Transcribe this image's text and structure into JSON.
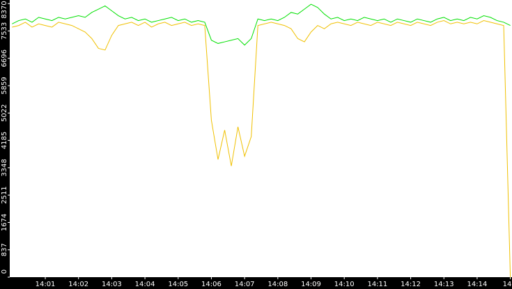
{
  "chart_data": {
    "type": "line",
    "x": [
      0,
      0.2,
      0.4,
      0.6,
      0.8,
      1,
      1.2,
      1.4,
      1.6,
      1.8,
      2,
      2.2,
      2.4,
      2.6,
      2.8,
      3,
      3.2,
      3.4,
      3.6,
      3.8,
      4,
      4.2,
      4.4,
      4.6,
      4.8,
      5,
      5.2,
      5.4,
      5.6,
      5.8,
      6,
      6.2,
      6.4,
      6.6,
      6.8,
      7,
      7.2,
      7.4,
      7.6,
      7.8,
      8,
      8.2,
      8.4,
      8.6,
      8.8,
      9,
      9.2,
      9.4,
      9.6,
      9.8,
      10,
      10.2,
      10.4,
      10.6,
      10.8,
      11,
      11.2,
      11.4,
      11.6,
      11.8,
      12,
      12.2,
      12.4,
      12.6,
      12.8,
      13,
      13.2,
      13.4,
      13.6,
      13.8,
      14,
      14.2,
      14.4,
      14.6,
      14.8,
      15
    ],
    "series": [
      {
        "color": "#00e000",
        "values": [
          7750,
          7850,
          7900,
          7800,
          7950,
          7900,
          7850,
          7950,
          7900,
          7950,
          8000,
          7950,
          8100,
          8200,
          8300,
          8150,
          8000,
          7900,
          7950,
          7850,
          7900,
          7800,
          7850,
          7900,
          7950,
          7850,
          7900,
          7800,
          7850,
          7800,
          7250,
          7150,
          7200,
          7250,
          7300,
          7100,
          7300,
          7900,
          7850,
          7900,
          7850,
          7950,
          8100,
          8050,
          8200,
          8350,
          8250,
          8050,
          7900,
          7950,
          7850,
          7900,
          7850,
          7950,
          7900,
          7850,
          7900,
          7800,
          7900,
          7850,
          7800,
          7900,
          7850,
          7800,
          7900,
          7950,
          7850,
          7900,
          7850,
          7950,
          7900,
          8000,
          7950,
          7850,
          7800,
          7700
        ]
      },
      {
        "color": "#f0c000",
        "values": [
          7650,
          7700,
          7800,
          7650,
          7750,
          7700,
          7650,
          7800,
          7750,
          7700,
          7600,
          7500,
          7300,
          7000,
          6950,
          7400,
          7700,
          7750,
          7800,
          7700,
          7800,
          7650,
          7750,
          7800,
          7700,
          7750,
          7800,
          7700,
          7750,
          7700,
          4800,
          3600,
          4500,
          3400,
          4600,
          3700,
          4300,
          7700,
          7750,
          7800,
          7750,
          7700,
          7600,
          7300,
          7200,
          7500,
          7700,
          7600,
          7750,
          7800,
          7750,
          7700,
          7800,
          7750,
          7700,
          7800,
          7750,
          7700,
          7800,
          7750,
          7700,
          7800,
          7750,
          7700,
          7800,
          7850,
          7750,
          7800,
          7750,
          7800,
          7750,
          7850,
          7800,
          7750,
          7700,
          0
        ]
      }
    ],
    "xlim": [
      -0.07,
      15.05
    ],
    "xticks": [
      {
        "value": 1,
        "label": "14:01"
      },
      {
        "value": 2,
        "label": "14:02"
      },
      {
        "value": 3,
        "label": "14:03"
      },
      {
        "value": 4,
        "label": "14:04"
      },
      {
        "value": 5,
        "label": "14:05"
      },
      {
        "value": 6,
        "label": "14:06"
      },
      {
        "value": 7,
        "label": "14:07"
      },
      {
        "value": 8,
        "label": "14:08"
      },
      {
        "value": 9,
        "label": "14:09"
      },
      {
        "value": 10,
        "label": "14:10"
      },
      {
        "value": 11,
        "label": "14:11"
      },
      {
        "value": 12,
        "label": "14:12"
      },
      {
        "value": 13,
        "label": "14:13"
      },
      {
        "value": 14,
        "label": "14:14"
      },
      {
        "value": 15,
        "label": "14"
      }
    ],
    "ylim": [
      0,
      8480
    ],
    "yticks": [
      0,
      837,
      1674,
      2511,
      3348,
      4185,
      5022,
      5859,
      6696,
      7533,
      8370
    ]
  }
}
